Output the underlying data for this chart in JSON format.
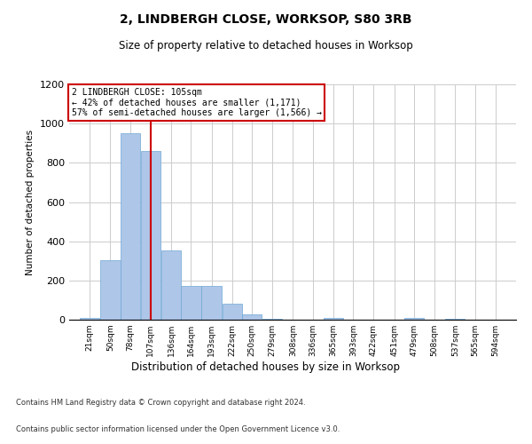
{
  "title1": "2, LINDBERGH CLOSE, WORKSOP, S80 3RB",
  "title2": "Size of property relative to detached houses in Worksop",
  "xlabel": "Distribution of detached houses by size in Worksop",
  "ylabel": "Number of detached properties",
  "bins": [
    21,
    50,
    78,
    107,
    136,
    164,
    193,
    222,
    250,
    279,
    308,
    336,
    365,
    393,
    422,
    451,
    479,
    508,
    537,
    565,
    594
  ],
  "values": [
    10,
    305,
    950,
    860,
    355,
    170,
    170,
    80,
    25,
    5,
    0,
    0,
    10,
    0,
    0,
    0,
    10,
    0,
    5,
    0,
    0
  ],
  "bar_color": "#aec6e8",
  "bar_edge_color": "#6fa8d4",
  "red_line_x": 107,
  "annotation_text": "2 LINDBERGH CLOSE: 105sqm\n← 42% of detached houses are smaller (1,171)\n57% of semi-detached houses are larger (1,566) →",
  "annotation_box_color": "#ffffff",
  "annotation_box_edge": "#cc0000",
  "ylim": [
    0,
    1200
  ],
  "yticks": [
    0,
    200,
    400,
    600,
    800,
    1000,
    1200
  ],
  "footer1": "Contains HM Land Registry data © Crown copyright and database right 2024.",
  "footer2": "Contains public sector information licensed under the Open Government Licence v3.0.",
  "bg_color": "#ffffff",
  "grid_color": "#cccccc"
}
